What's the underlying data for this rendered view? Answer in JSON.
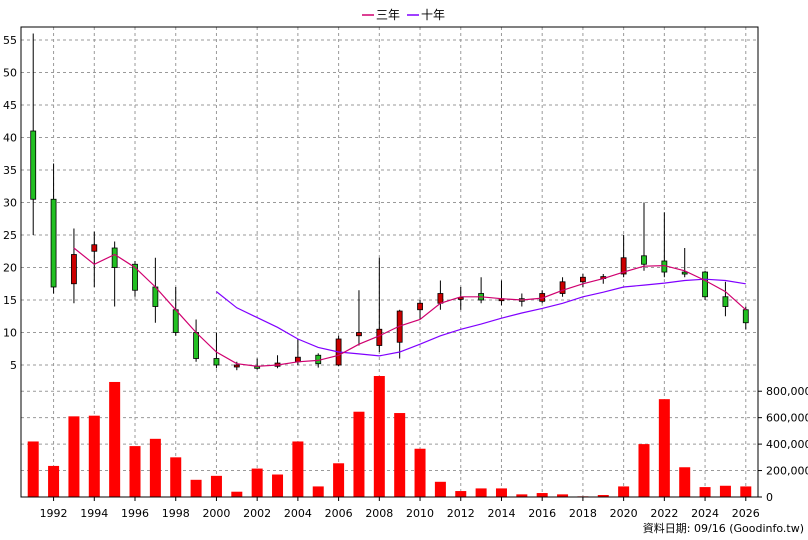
{
  "chart_data": {
    "type": "candlestick+line+bar",
    "legend": [
      {
        "name": "三年",
        "color": "#d0006f"
      },
      {
        "name": "十年",
        "color": "#8000ff"
      }
    ],
    "footer": "資料日期: 09/16 (Goodinfo.tw)",
    "price_axis": {
      "ticks": [
        5,
        10,
        15,
        20,
        25,
        30,
        35,
        40,
        45,
        50,
        55
      ],
      "range": [
        3,
        57
      ]
    },
    "volume_axis": {
      "ticks": [
        "0",
        "200,000",
        "400,000",
        "600,000",
        "800,000"
      ],
      "values": [
        0,
        200000,
        400000,
        600000,
        800000
      ],
      "max": 900000
    },
    "x_axis": {
      "range": [
        1990.4,
        2026.6
      ],
      "ticks": [
        "1992",
        "1994",
        "1996",
        "1998",
        "2000",
        "2002",
        "2004",
        "2006",
        "2008",
        "2010",
        "2012",
        "2014",
        "2016",
        "2018",
        "2020",
        "2022",
        "2024",
        "2026"
      ]
    },
    "colors": {
      "up": "#cc0000",
      "down": "#22c022",
      "volume": "#ff0000",
      "grid": "#9a9a9a"
    },
    "candles": [
      {
        "year": 1991,
        "open": 41,
        "high": 56,
        "low": 25,
        "close": 30.5
      },
      {
        "year": 1992,
        "open": 30.5,
        "high": 36,
        "low": 16,
        "close": 17
      },
      {
        "year": 1993,
        "open": 17.5,
        "high": 26,
        "low": 14.5,
        "close": 22
      },
      {
        "year": 1994,
        "open": 22.5,
        "high": 25.5,
        "low": 17,
        "close": 23.5
      },
      {
        "year": 1995,
        "open": 23,
        "high": 24,
        "low": 14,
        "close": 20
      },
      {
        "year": 1996,
        "open": 20.5,
        "high": 21,
        "low": 15.5,
        "close": 16.5
      },
      {
        "year": 1997,
        "open": 17,
        "high": 21.5,
        "low": 11.5,
        "close": 14
      },
      {
        "year": 1998,
        "open": 13.5,
        "high": 17,
        "low": 9.5,
        "close": 10
      },
      {
        "year": 1999,
        "open": 10,
        "high": 12,
        "low": 5.5,
        "close": 6
      },
      {
        "year": 2000,
        "open": 6,
        "high": 10,
        "low": 4.5,
        "close": 5
      },
      {
        "year": 2001,
        "open": 4.8,
        "high": 5.5,
        "low": 4.2,
        "close": 5
      },
      {
        "year": 2002,
        "open": 4.8,
        "high": 6,
        "low": 4.3,
        "close": 4.6
      },
      {
        "year": 2003,
        "open": 4.8,
        "high": 6.5,
        "low": 4.5,
        "close": 5.3
      },
      {
        "year": 2004,
        "open": 5.5,
        "high": 9,
        "low": 5,
        "close": 6.2
      },
      {
        "year": 2005,
        "open": 6.5,
        "high": 6.8,
        "low": 4.6,
        "close": 5.2
      },
      {
        "year": 2006,
        "open": 5,
        "high": 9.5,
        "low": 4.8,
        "close": 9
      },
      {
        "year": 2007,
        "open": 9.5,
        "high": 16.5,
        "low": 8,
        "close": 10
      },
      {
        "year": 2008,
        "open": 8,
        "high": 21.5,
        "low": 7,
        "close": 10.5
      },
      {
        "year": 2009,
        "open": 8.5,
        "high": 13.5,
        "low": 6,
        "close": 13.3
      },
      {
        "year": 2010,
        "open": 13.5,
        "high": 15,
        "low": 12,
        "close": 14.5
      },
      {
        "year": 2011,
        "open": 14.5,
        "high": 18,
        "low": 13.5,
        "close": 16
      },
      {
        "year": 2012,
        "open": 15.2,
        "high": 17,
        "low": 13.5,
        "close": 15.4
      },
      {
        "year": 2013,
        "open": 16,
        "high": 18.5,
        "low": 14.5,
        "close": 15
      },
      {
        "year": 2014,
        "open": 15,
        "high": 18,
        "low": 14.2,
        "close": 15.2
      },
      {
        "year": 2015,
        "open": 15.2,
        "high": 16,
        "low": 14,
        "close": 14.8
      },
      {
        "year": 2016,
        "open": 14.8,
        "high": 16.5,
        "low": 14.5,
        "close": 16
      },
      {
        "year": 2017,
        "open": 16,
        "high": 18.5,
        "low": 15.5,
        "close": 17.8
      },
      {
        "year": 2018,
        "open": 17.8,
        "high": 19,
        "low": 17,
        "close": 18.5
      },
      {
        "year": 2019,
        "open": 18.3,
        "high": 19,
        "low": 17.5,
        "close": 18.6
      },
      {
        "year": 2020,
        "open": 19,
        "high": 25,
        "low": 18.5,
        "close": 21.5
      },
      {
        "year": 2021,
        "open": 21.8,
        "high": 30,
        "low": 19.5,
        "close": 20.5
      },
      {
        "year": 2022,
        "open": 21,
        "high": 28.5,
        "low": 18.5,
        "close": 19.3
      },
      {
        "year": 2023,
        "open": 19.3,
        "high": 23,
        "low": 18.5,
        "close": 19
      },
      {
        "year": 2024,
        "open": 19.3,
        "high": 19.5,
        "low": 15,
        "close": 15.5
      },
      {
        "year": 2025,
        "open": 15.5,
        "high": 17.8,
        "low": 12.5,
        "close": 14
      },
      {
        "year": 2026,
        "open": 13.5,
        "high": 14,
        "low": 10.5,
        "close": 11.5
      }
    ],
    "ma3": [
      [
        1993,
        23
      ],
      [
        1994,
        20.5
      ],
      [
        1995,
        22
      ],
      [
        1996,
        20
      ],
      [
        1997,
        17
      ],
      [
        1998,
        13.5
      ],
      [
        1999,
        10
      ],
      [
        2000,
        7
      ],
      [
        2001,
        5.2
      ],
      [
        2002,
        4.8
      ],
      [
        2003,
        5
      ],
      [
        2004,
        5.5
      ],
      [
        2005,
        5.7
      ],
      [
        2006,
        6.5
      ],
      [
        2007,
        8.2
      ],
      [
        2008,
        9.5
      ],
      [
        2009,
        11
      ],
      [
        2010,
        12
      ],
      [
        2011,
        14.5
      ],
      [
        2012,
        15.5
      ],
      [
        2013,
        15.5
      ],
      [
        2014,
        15.2
      ],
      [
        2015,
        15
      ],
      [
        2016,
        15.3
      ],
      [
        2017,
        16.5
      ],
      [
        2018,
        17.5
      ],
      [
        2019,
        18.3
      ],
      [
        2020,
        19.3
      ],
      [
        2021,
        20.2
      ],
      [
        2022,
        20.3
      ],
      [
        2023,
        19.5
      ],
      [
        2024,
        18
      ],
      [
        2025,
        16.3
      ],
      [
        2026,
        13.5
      ]
    ],
    "ma10": [
      [
        2000,
        16.3
      ],
      [
        2001,
        13.8
      ],
      [
        2002,
        12.3
      ],
      [
        2003,
        10.8
      ],
      [
        2004,
        9
      ],
      [
        2005,
        7.7
      ],
      [
        2006,
        7
      ],
      [
        2007,
        6.7
      ],
      [
        2008,
        6.4
      ],
      [
        2009,
        7
      ],
      [
        2010,
        8.2
      ],
      [
        2011,
        9.5
      ],
      [
        2012,
        10.5
      ],
      [
        2013,
        11.3
      ],
      [
        2014,
        12.2
      ],
      [
        2015,
        13
      ],
      [
        2016,
        13.7
      ],
      [
        2017,
        14.5
      ],
      [
        2018,
        15.5
      ],
      [
        2019,
        16.2
      ],
      [
        2020,
        17
      ],
      [
        2021,
        17.3
      ],
      [
        2022,
        17.6
      ],
      [
        2023,
        18
      ],
      [
        2024,
        18.2
      ],
      [
        2025,
        18
      ],
      [
        2026,
        17.5
      ]
    ],
    "volumes": [
      [
        1991,
        420000
      ],
      [
        1992,
        235000
      ],
      [
        1993,
        610000
      ],
      [
        1994,
        615000
      ],
      [
        1995,
        870000
      ],
      [
        1996,
        385000
      ],
      [
        1997,
        440000
      ],
      [
        1998,
        300000
      ],
      [
        1999,
        130000
      ],
      [
        2000,
        160000
      ],
      [
        2001,
        40000
      ],
      [
        2002,
        215000
      ],
      [
        2003,
        170000
      ],
      [
        2004,
        420000
      ],
      [
        2005,
        80000
      ],
      [
        2006,
        255000
      ],
      [
        2007,
        645000
      ],
      [
        2008,
        915000
      ],
      [
        2009,
        635000
      ],
      [
        2010,
        365000
      ],
      [
        2011,
        115000
      ],
      [
        2012,
        45000
      ],
      [
        2013,
        65000
      ],
      [
        2014,
        65000
      ],
      [
        2015,
        20000
      ],
      [
        2016,
        30000
      ],
      [
        2017,
        20000
      ],
      [
        2018,
        5000
      ],
      [
        2019,
        15000
      ],
      [
        2020,
        80000
      ],
      [
        2021,
        400000
      ],
      [
        2022,
        740000
      ],
      [
        2023,
        225000
      ],
      [
        2024,
        75000
      ],
      [
        2025,
        85000
      ],
      [
        2026,
        80000
      ]
    ]
  }
}
